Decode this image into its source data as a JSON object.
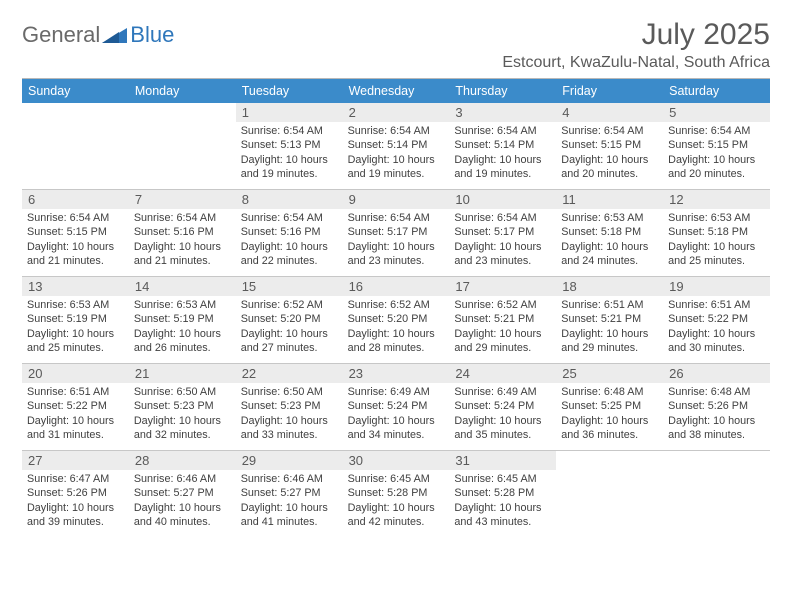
{
  "brand": {
    "word1": "General",
    "word2": "Blue"
  },
  "title": "July 2025",
  "location": "Estcourt, KwaZulu-Natal, South Africa",
  "colors": {
    "header_bg": "#3b8bca",
    "header_text": "#ffffff",
    "daynum_bg": "#ececec",
    "border": "#c7c7c7",
    "text": "#404040",
    "title_text": "#5a5a5a",
    "logo_gray": "#6a6a6a",
    "logo_blue": "#2f77bb"
  },
  "days_of_week": [
    "Sunday",
    "Monday",
    "Tuesday",
    "Wednesday",
    "Thursday",
    "Friday",
    "Saturday"
  ],
  "weeks": [
    [
      null,
      null,
      {
        "n": "1",
        "sr": "6:54 AM",
        "ss": "5:13 PM",
        "dl": "10 hours and 19 minutes."
      },
      {
        "n": "2",
        "sr": "6:54 AM",
        "ss": "5:14 PM",
        "dl": "10 hours and 19 minutes."
      },
      {
        "n": "3",
        "sr": "6:54 AM",
        "ss": "5:14 PM",
        "dl": "10 hours and 19 minutes."
      },
      {
        "n": "4",
        "sr": "6:54 AM",
        "ss": "5:15 PM",
        "dl": "10 hours and 20 minutes."
      },
      {
        "n": "5",
        "sr": "6:54 AM",
        "ss": "5:15 PM",
        "dl": "10 hours and 20 minutes."
      }
    ],
    [
      {
        "n": "6",
        "sr": "6:54 AM",
        "ss": "5:15 PM",
        "dl": "10 hours and 21 minutes."
      },
      {
        "n": "7",
        "sr": "6:54 AM",
        "ss": "5:16 PM",
        "dl": "10 hours and 21 minutes."
      },
      {
        "n": "8",
        "sr": "6:54 AM",
        "ss": "5:16 PM",
        "dl": "10 hours and 22 minutes."
      },
      {
        "n": "9",
        "sr": "6:54 AM",
        "ss": "5:17 PM",
        "dl": "10 hours and 23 minutes."
      },
      {
        "n": "10",
        "sr": "6:54 AM",
        "ss": "5:17 PM",
        "dl": "10 hours and 23 minutes."
      },
      {
        "n": "11",
        "sr": "6:53 AM",
        "ss": "5:18 PM",
        "dl": "10 hours and 24 minutes."
      },
      {
        "n": "12",
        "sr": "6:53 AM",
        "ss": "5:18 PM",
        "dl": "10 hours and 25 minutes."
      }
    ],
    [
      {
        "n": "13",
        "sr": "6:53 AM",
        "ss": "5:19 PM",
        "dl": "10 hours and 25 minutes."
      },
      {
        "n": "14",
        "sr": "6:53 AM",
        "ss": "5:19 PM",
        "dl": "10 hours and 26 minutes."
      },
      {
        "n": "15",
        "sr": "6:52 AM",
        "ss": "5:20 PM",
        "dl": "10 hours and 27 minutes."
      },
      {
        "n": "16",
        "sr": "6:52 AM",
        "ss": "5:20 PM",
        "dl": "10 hours and 28 minutes."
      },
      {
        "n": "17",
        "sr": "6:52 AM",
        "ss": "5:21 PM",
        "dl": "10 hours and 29 minutes."
      },
      {
        "n": "18",
        "sr": "6:51 AM",
        "ss": "5:21 PM",
        "dl": "10 hours and 29 minutes."
      },
      {
        "n": "19",
        "sr": "6:51 AM",
        "ss": "5:22 PM",
        "dl": "10 hours and 30 minutes."
      }
    ],
    [
      {
        "n": "20",
        "sr": "6:51 AM",
        "ss": "5:22 PM",
        "dl": "10 hours and 31 minutes."
      },
      {
        "n": "21",
        "sr": "6:50 AM",
        "ss": "5:23 PM",
        "dl": "10 hours and 32 minutes."
      },
      {
        "n": "22",
        "sr": "6:50 AM",
        "ss": "5:23 PM",
        "dl": "10 hours and 33 minutes."
      },
      {
        "n": "23",
        "sr": "6:49 AM",
        "ss": "5:24 PM",
        "dl": "10 hours and 34 minutes."
      },
      {
        "n": "24",
        "sr": "6:49 AM",
        "ss": "5:24 PM",
        "dl": "10 hours and 35 minutes."
      },
      {
        "n": "25",
        "sr": "6:48 AM",
        "ss": "5:25 PM",
        "dl": "10 hours and 36 minutes."
      },
      {
        "n": "26",
        "sr": "6:48 AM",
        "ss": "5:26 PM",
        "dl": "10 hours and 38 minutes."
      }
    ],
    [
      {
        "n": "27",
        "sr": "6:47 AM",
        "ss": "5:26 PM",
        "dl": "10 hours and 39 minutes."
      },
      {
        "n": "28",
        "sr": "6:46 AM",
        "ss": "5:27 PM",
        "dl": "10 hours and 40 minutes."
      },
      {
        "n": "29",
        "sr": "6:46 AM",
        "ss": "5:27 PM",
        "dl": "10 hours and 41 minutes."
      },
      {
        "n": "30",
        "sr": "6:45 AM",
        "ss": "5:28 PM",
        "dl": "10 hours and 42 minutes."
      },
      {
        "n": "31",
        "sr": "6:45 AM",
        "ss": "5:28 PM",
        "dl": "10 hours and 43 minutes."
      },
      null,
      null
    ]
  ],
  "labels": {
    "sunrise": "Sunrise:",
    "sunset": "Sunset:",
    "daylight": "Daylight:"
  }
}
